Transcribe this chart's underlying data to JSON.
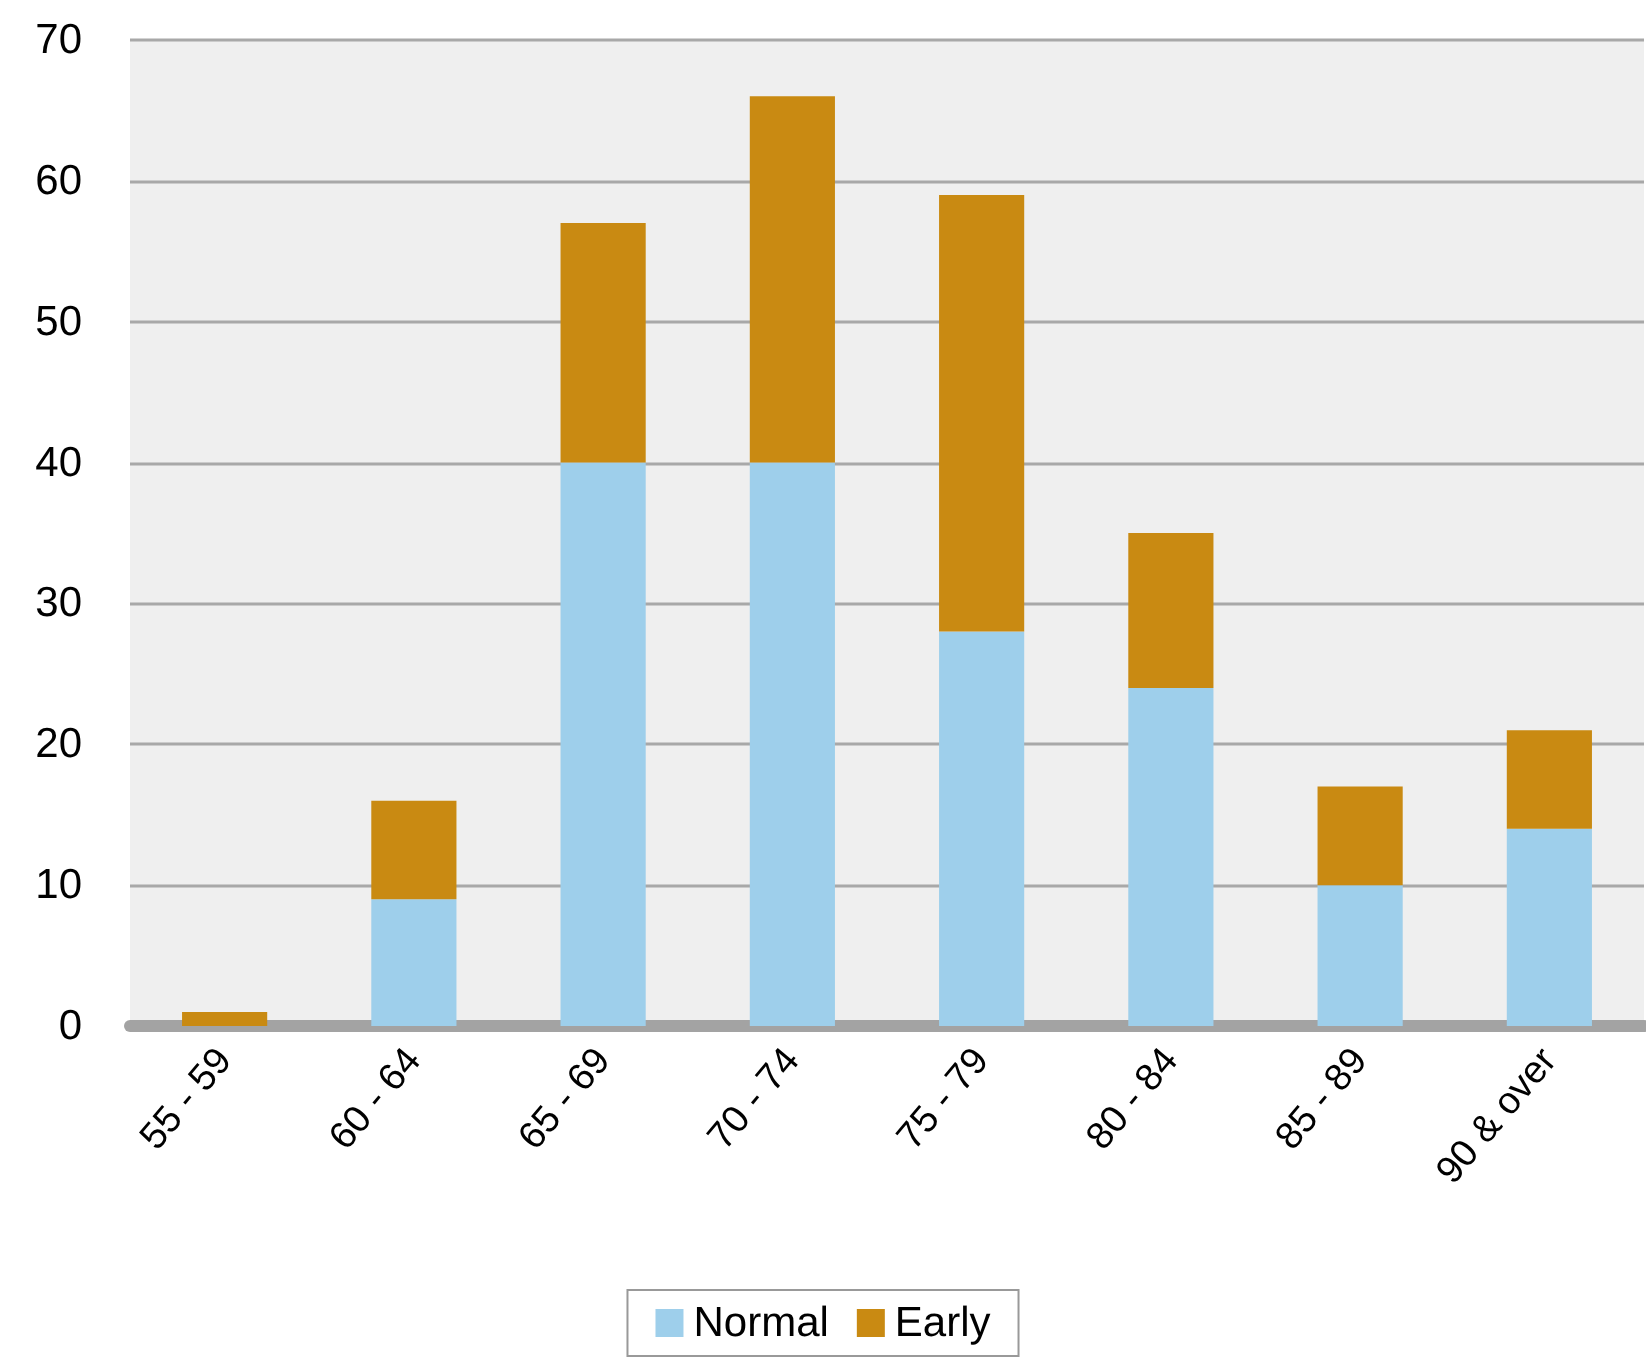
{
  "chart_data": {
    "type": "bar",
    "stacked": true,
    "categories": [
      "55 - 59",
      "60 - 64",
      "65 - 69",
      "70 - 74",
      "75 - 79",
      "80 - 84",
      "85 - 89",
      "90 & over"
    ],
    "series": [
      {
        "name": "Normal",
        "color": "#9ecfeb",
        "values": [
          0,
          9,
          40,
          40,
          28,
          24,
          10,
          14
        ]
      },
      {
        "name": "Early",
        "color": "#c98a12",
        "values": [
          1,
          7,
          17,
          26,
          31,
          11,
          7,
          7
        ]
      }
    ],
    "ylim": [
      0,
      70
    ],
    "yticks": [
      0,
      10,
      20,
      30,
      40,
      50,
      60,
      70
    ],
    "grid": "y",
    "legend": "bottom"
  }
}
